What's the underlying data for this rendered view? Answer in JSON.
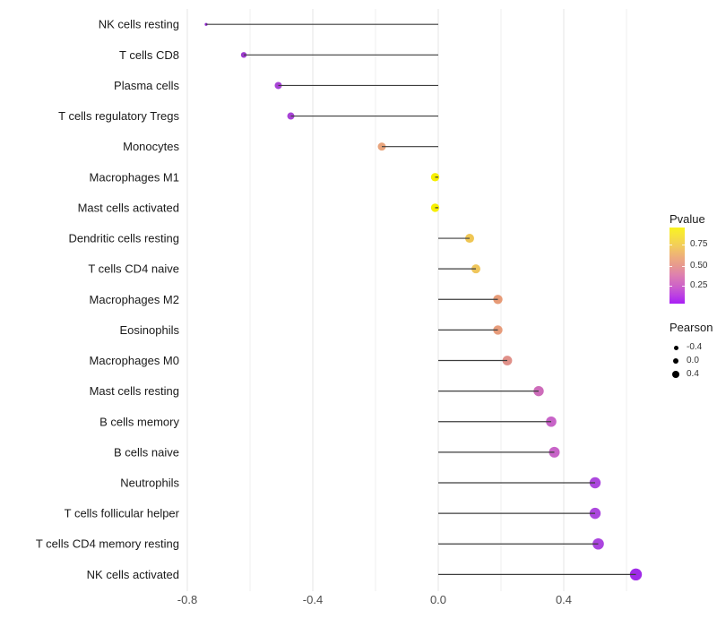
{
  "chart_data": {
    "type": "scatter",
    "variant": "lollipop",
    "title": "",
    "xlabel": "",
    "ylabel": "",
    "categories": [
      "NK cells resting",
      "T cells CD8",
      "Plasma cells",
      "T cells regulatory  Tregs",
      "Monocytes",
      "Macrophages M1",
      "Mast cells activated",
      "Dendritic cells resting",
      "T cells CD4 naive",
      "Macrophages M2",
      "Eosinophils",
      "Macrophages M0",
      "Mast cells resting",
      "B cells memory",
      "B cells naive",
      "Neutrophils",
      "T cells follicular helper",
      "T cells CD4 memory resting",
      "NK cells activated"
    ],
    "series": [
      {
        "name": "Pearson",
        "values": [
          -0.74,
          -0.62,
          -0.51,
          -0.47,
          -0.18,
          -0.01,
          -0.01,
          0.1,
          0.12,
          0.19,
          0.19,
          0.22,
          0.32,
          0.36,
          0.37,
          0.5,
          0.5,
          0.51,
          0.63
        ]
      },
      {
        "name": "Pvalue",
        "values": [
          0.01,
          0.04,
          0.07,
          0.08,
          0.62,
          0.95,
          0.96,
          0.8,
          0.78,
          0.58,
          0.58,
          0.52,
          0.35,
          0.3,
          0.3,
          0.15,
          0.15,
          0.14,
          0.03
        ]
      }
    ],
    "point_colors": [
      "#8e22cf",
      "#9c3bcd",
      "#a843d6",
      "#a843d6",
      "#e9a57d",
      "#f7ef00",
      "#f7ef00",
      "#efc654",
      "#efc65c",
      "#e79b77",
      "#e79c7b",
      "#e09089",
      "#cd6cba",
      "#c864c8",
      "#c864c8",
      "#ac47de",
      "#ac47de",
      "#ab45df",
      "#a02be8"
    ],
    "point_radii": [
      1.6,
      3.2,
      4.0,
      4.0,
      4.5,
      4.7,
      4.7,
      5.0,
      5.0,
      5.2,
      5.2,
      5.4,
      5.7,
      5.8,
      6.0,
      6.2,
      6.2,
      6.3,
      6.7
    ],
    "x_ticks": [
      -0.8,
      -0.4,
      0.0,
      0.4
    ],
    "x_tick_labels": [
      "-0.8",
      "-0.4",
      "0.0",
      "0.4"
    ],
    "xlim": [
      -0.81,
      0.7
    ],
    "grid": "vertical-only",
    "gridline_step": 0.2,
    "legend_position": "right",
    "stem_color": "#3d3d3d",
    "gridline_color_major": "#e4e4e4",
    "gridline_color_minor": "#efefef"
  },
  "legend": {
    "pvalue_title": "Pvalue",
    "pvalue_ticks": [
      "0.75",
      "0.50",
      "0.25"
    ],
    "pvalue_gradient_top_to_bottom": [
      "#f9f320",
      "#f2ca5e",
      "#e7998f",
      "#cd62c8",
      "#a81ff5"
    ],
    "pearson_title": "Pearson",
    "pearson_size_items": [
      {
        "label": "-0.4"
      },
      {
        "label": "0.0"
      },
      {
        "label": "0.4"
      }
    ]
  }
}
